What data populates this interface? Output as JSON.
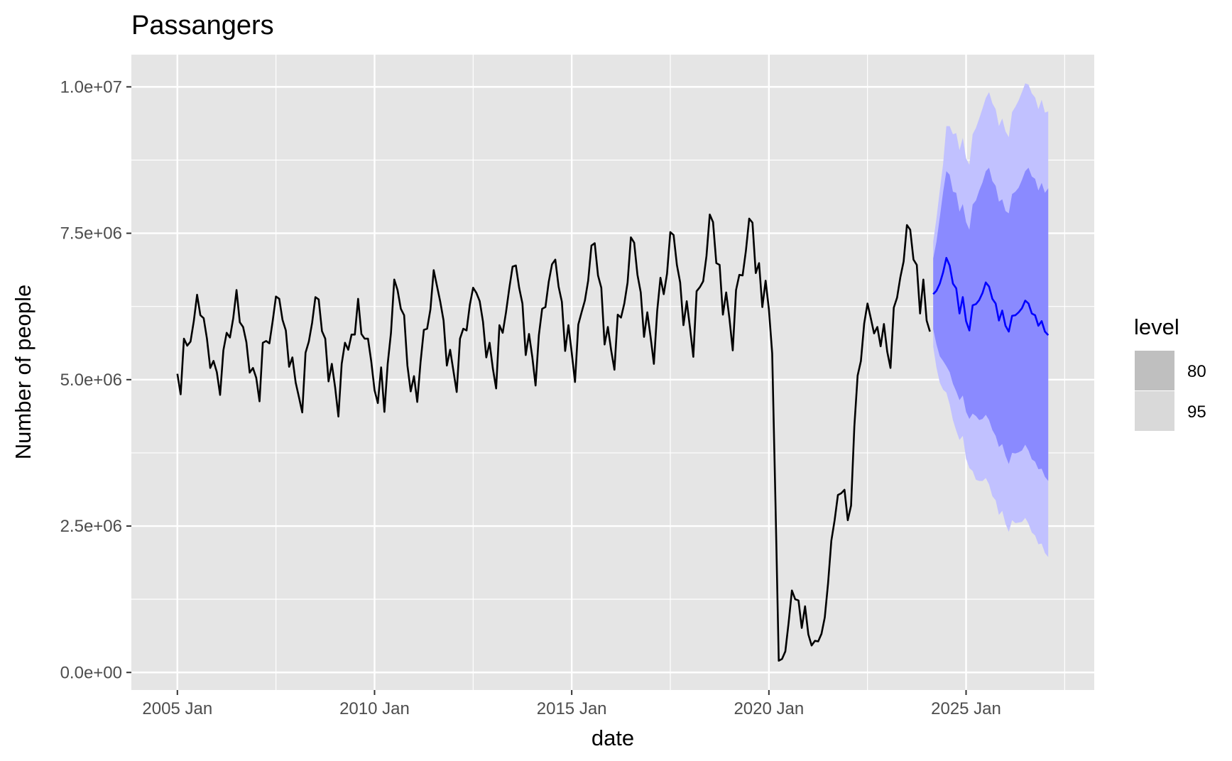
{
  "chart_data": {
    "type": "line",
    "title": "Passangers",
    "xlabel": "date",
    "ylabel": "Number of people",
    "x_ticks": [
      "2005 Jan",
      "2010 Jan",
      "2015 Jan",
      "2020 Jan",
      "2025 Jan"
    ],
    "y_ticks": [
      "0.0e+00",
      "2.5e+06",
      "5.0e+06",
      "7.5e+06",
      "1.0e+07"
    ],
    "xlim": [
      "2003-11",
      "2028-04"
    ],
    "ylim": [
      -300000,
      10550000
    ],
    "grid": true,
    "legend": {
      "title": "level",
      "position": "right",
      "entries": [
        {
          "label": "80",
          "color": "#bfbfbf"
        },
        {
          "label": "95",
          "color": "#d9d9d9"
        }
      ]
    },
    "colors": {
      "observed": "#000000",
      "forecast": "#0000ff",
      "band80": "#8a8aff",
      "band95": "#c1c1ff",
      "panel": "#e5e5e5",
      "grid": "#ffffff"
    },
    "series": [
      {
        "start": "2005-01",
        "frequency": "monthly",
        "values": [
          5100000,
          4750000,
          5700000,
          5580000,
          5650000,
          6000000,
          6450000,
          6100000,
          6050000,
          5700000,
          5200000,
          5320000,
          5130000,
          4740000,
          5500000,
          5800000,
          5720000,
          6050000,
          6530000,
          5980000,
          5900000,
          5640000,
          5120000,
          5200000,
          5030000,
          4630000,
          5630000,
          5660000,
          5620000,
          6000000,
          6420000,
          6380000,
          6020000,
          5840000,
          5220000,
          5380000,
          4950000,
          4700000,
          4440000,
          5460000,
          5650000,
          5970000,
          6410000,
          6370000,
          5830000,
          5700000,
          4970000,
          5270000,
          4870000,
          4370000,
          5270000,
          5630000,
          5510000,
          5770000,
          5770000,
          6380000,
          5780000,
          5700000,
          5700000,
          5310000,
          4820000,
          4600000,
          5210000,
          4450000,
          5270000,
          5800000,
          6710000,
          6530000,
          6210000,
          6100000,
          5240000,
          4800000,
          5060000,
          4620000,
          5300000,
          5850000,
          5870000,
          6200000,
          6870000,
          6600000,
          6330000,
          6010000,
          5240000,
          5510000,
          5150000,
          4790000,
          5700000,
          5870000,
          5840000,
          6280000,
          6570000,
          6480000,
          6340000,
          5990000,
          5380000,
          5630000,
          5190000,
          4850000,
          5930000,
          5800000,
          6150000,
          6560000,
          6930000,
          6950000,
          6570000,
          6300000,
          5420000,
          5780000,
          5390000,
          4900000,
          5760000,
          6210000,
          6240000,
          6670000,
          6970000,
          7050000,
          6590000,
          6330000,
          5490000,
          5930000,
          5460000,
          4960000,
          5940000,
          6150000,
          6350000,
          6690000,
          7290000,
          7330000,
          6780000,
          6570000,
          5600000,
          5900000,
          5500000,
          5170000,
          6110000,
          6060000,
          6300000,
          6660000,
          7430000,
          7340000,
          6790000,
          6490000,
          5730000,
          6150000,
          5730000,
          5270000,
          6170000,
          6740000,
          6460000,
          6810000,
          7520000,
          7470000,
          6960000,
          6660000,
          5930000,
          6340000,
          5880000,
          5390000,
          6510000,
          6580000,
          6680000,
          7110000,
          7820000,
          7690000,
          6990000,
          6960000,
          6110000,
          6490000,
          6040000,
          5500000,
          6530000,
          6790000,
          6780000,
          7200000,
          7750000,
          7680000,
          6820000,
          6990000,
          6240000,
          6690000,
          6200000,
          5450000,
          2900000,
          200000,
          230000,
          360000,
          850000,
          1400000,
          1250000,
          1230000,
          760000,
          1130000,
          650000,
          460000,
          540000,
          530000,
          660000,
          940000,
          1520000,
          2250000,
          2600000,
          3030000,
          3060000,
          3120000,
          2600000,
          2850000,
          4200000,
          5070000,
          5320000,
          5960000,
          6300000,
          6050000,
          5790000,
          5900000,
          5570000,
          5950000,
          5480000,
          5200000,
          6230000,
          6400000,
          6750000,
          7020000,
          7640000,
          7560000,
          7050000,
          6960000,
          6130000,
          6710000,
          6010000,
          5820000
        ]
      },
      {
        "start": "2024-03",
        "frequency": "monthly",
        "values": [
          6460000,
          6520000,
          6640000,
          6830000,
          7080000,
          6950000,
          6640000,
          6560000,
          6130000,
          6410000,
          6000000,
          5840000,
          6270000,
          6290000,
          6360000,
          6480000,
          6660000,
          6590000,
          6380000,
          6300000,
          6010000,
          6180000,
          5920000,
          5820000,
          6090000,
          6100000,
          6150000,
          6220000,
          6350000,
          6300000,
          6130000,
          6100000,
          5920000,
          6000000,
          5820000,
          5760000
        ],
        "lo80": [
          5860000,
          5600000,
          5400000,
          5320000,
          5230000,
          5130000,
          4930000,
          4800000,
          4650000,
          4730000,
          4450000,
          4330000,
          4420000,
          4380000,
          4310000,
          4330000,
          4400000,
          4310000,
          4140000,
          4040000,
          3850000,
          3900000,
          3700000,
          3560000,
          3750000,
          3740000,
          3760000,
          3790000,
          3890000,
          3790000,
          3640000,
          3600000,
          3470000,
          3480000,
          3340000,
          3270000
        ],
        "hi80": [
          7070000,
          7360000,
          7770000,
          8200000,
          8560000,
          8500000,
          8210000,
          8190000,
          7870000,
          8000000,
          7690000,
          7560000,
          7990000,
          8060000,
          8230000,
          8370000,
          8560000,
          8620000,
          8390000,
          8310000,
          8040000,
          8080000,
          7880000,
          7840000,
          8170000,
          8210000,
          8280000,
          8410000,
          8560000,
          8620000,
          8470000,
          8430000,
          8230000,
          8360000,
          8190000,
          8270000
        ],
        "lo95": [
          5560000,
          5200000,
          4950000,
          4830000,
          4780000,
          4580000,
          4310000,
          4130000,
          3970000,
          4040000,
          3650000,
          3490000,
          3440000,
          3290000,
          3270000,
          3270000,
          3320000,
          3210000,
          3010000,
          2940000,
          2690000,
          2760000,
          2540000,
          2400000,
          2600000,
          2550000,
          2560000,
          2570000,
          2640000,
          2540000,
          2390000,
          2340000,
          2190000,
          2200000,
          2040000,
          1970000
        ],
        "hi95": [
          7360000,
          7760000,
          8230000,
          8680000,
          9330000,
          9330000,
          9190000,
          9210000,
          8920000,
          9130000,
          8780000,
          8670000,
          9190000,
          9300000,
          9460000,
          9630000,
          9810000,
          9910000,
          9720000,
          9620000,
          9330000,
          9460000,
          9240000,
          9140000,
          9570000,
          9660000,
          9770000,
          9910000,
          10060000,
          10040000,
          9890000,
          9820000,
          9620000,
          9780000,
          9560000,
          9580000
        ]
      }
    ]
  }
}
